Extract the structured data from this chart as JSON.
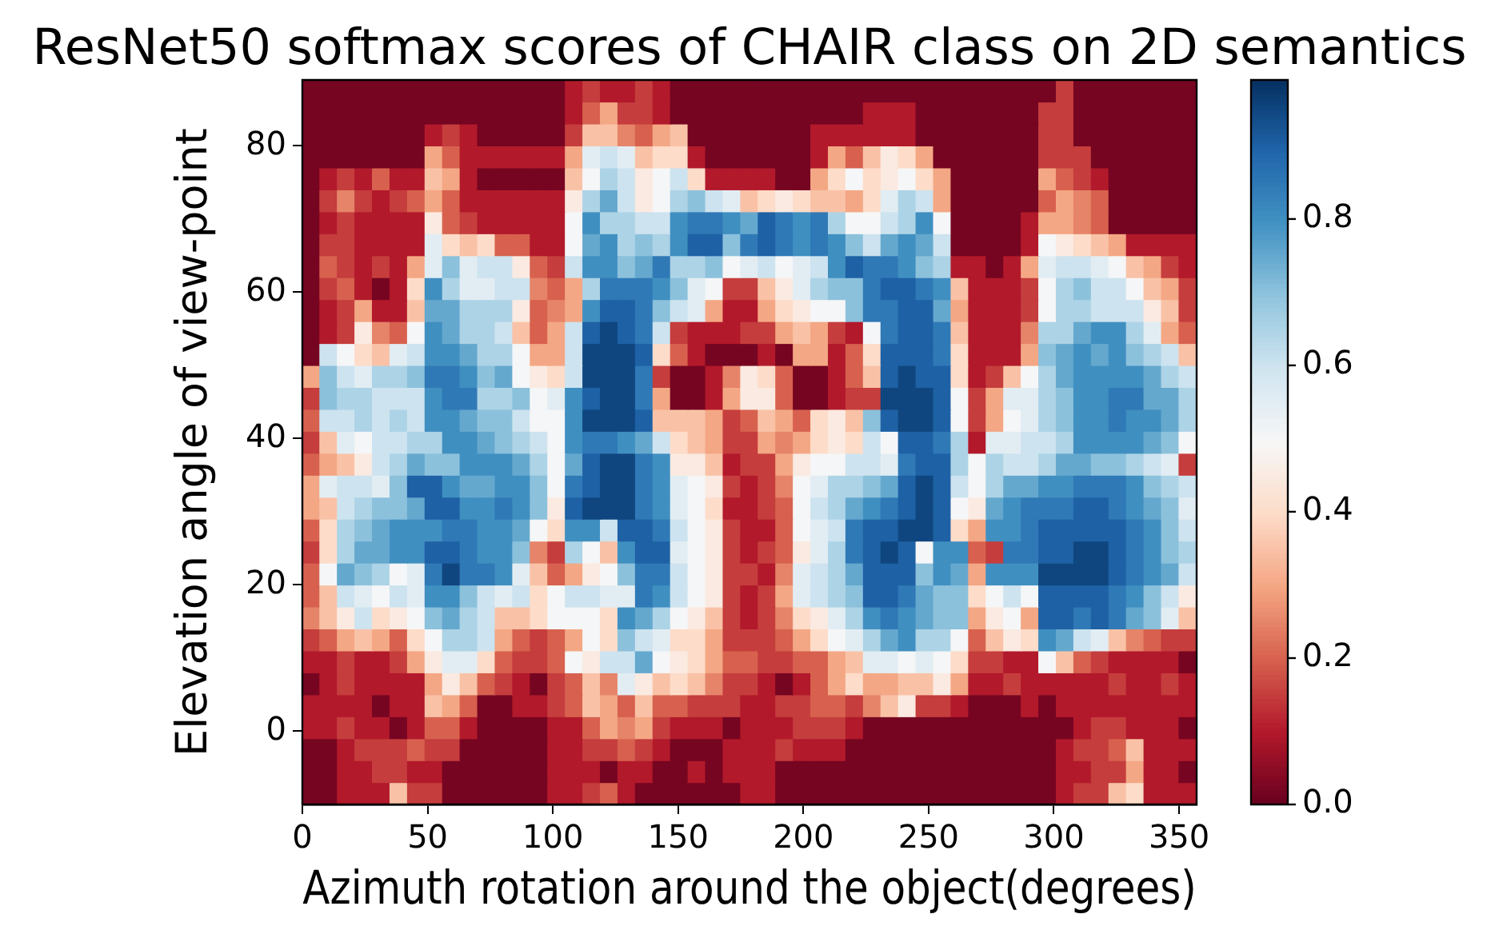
{
  "chart_data": {
    "type": "heatmap",
    "title": "ResNet50 softmax scores of CHAIR class on 2D semantics",
    "xlabel": "Azimuth rotation around the object(degrees)",
    "ylabel": "Elevation angle of view-point",
    "x": [
      3.5,
      10.5,
      17.5,
      24.5,
      31.5,
      38.5,
      45.5,
      52.5,
      59.5,
      66.5,
      73.5,
      80.5,
      87.5,
      94.5,
      101.5,
      108.5,
      115.5,
      122.5,
      129.5,
      136.5,
      143.5,
      150.5,
      157.5,
      164.5,
      171.5,
      178.5,
      185.5,
      192.5,
      199.5,
      206.5,
      213.5,
      220.5,
      227.5,
      234.5,
      241.5,
      248.5,
      255.5,
      262.5,
      269.5,
      276.5,
      283.5,
      290.5,
      297.5,
      304.5,
      311.5,
      318.5,
      325.5,
      332.5,
      339.5,
      346.5,
      353.5
    ],
    "xlim": [
      0,
      357
    ],
    "xticks": [
      0,
      50,
      100,
      150,
      200,
      250,
      300,
      350
    ],
    "ylim": [
      -10,
      89
    ],
    "yticks": [
      0,
      20,
      40,
      60,
      80
    ],
    "clim": [
      0,
      0.99
    ],
    "cticks": [
      {
        "value": 0,
        "label": "0.0"
      },
      0.2,
      0.4,
      0.6,
      0.8
    ],
    "cells": [
      [
        0.02,
        0.02,
        0.02,
        0.02,
        0.02,
        0.02,
        0.02,
        0.02,
        0.02,
        0.02,
        0.02,
        0.02,
        0.02,
        0.02,
        0.02,
        0.1,
        0.15,
        0.1,
        0.1,
        0.15,
        0.1,
        0.02,
        0.02,
        0.02,
        0.02,
        0.02,
        0.02,
        0.02,
        0.02,
        0.02,
        0.02,
        0.02,
        0.02,
        0.02,
        0.02,
        0.02,
        0.02,
        0.02,
        0.02,
        0.02,
        0.02,
        0.02,
        0.02,
        0.15,
        0.02,
        0.02,
        0.02,
        0.02,
        0.02,
        0.02,
        0.02
      ],
      [
        0.02,
        0.02,
        0.02,
        0.02,
        0.02,
        0.02,
        0.02,
        0.02,
        0.02,
        0.02,
        0.02,
        0.02,
        0.02,
        0.02,
        0.02,
        0.1,
        0.2,
        0.3,
        0.15,
        0.15,
        0.1,
        0.02,
        0.02,
        0.02,
        0.02,
        0.02,
        0.02,
        0.02,
        0.02,
        0.02,
        0.02,
        0.02,
        0.1,
        0.1,
        0.1,
        0.02,
        0.02,
        0.02,
        0.02,
        0.02,
        0.02,
        0.02,
        0.15,
        0.15,
        0.02,
        0.02,
        0.02,
        0.02,
        0.02,
        0.02,
        0.02
      ],
      [
        0.02,
        0.02,
        0.02,
        0.02,
        0.02,
        0.02,
        0.02,
        0.1,
        0.15,
        0.1,
        0.02,
        0.02,
        0.02,
        0.02,
        0.02,
        0.15,
        0.35,
        0.35,
        0.25,
        0.2,
        0.3,
        0.35,
        0.02,
        0.02,
        0.02,
        0.02,
        0.02,
        0.02,
        0.02,
        0.1,
        0.1,
        0.1,
        0.1,
        0.1,
        0.1,
        0.02,
        0.02,
        0.02,
        0.02,
        0.02,
        0.02,
        0.02,
        0.15,
        0.15,
        0.02,
        0.02,
        0.02,
        0.02,
        0.02,
        0.02,
        0.02
      ],
      [
        0.02,
        0.02,
        0.02,
        0.02,
        0.02,
        0.02,
        0.02,
        0.3,
        0.2,
        0.1,
        0.1,
        0.1,
        0.1,
        0.1,
        0.1,
        0.3,
        0.55,
        0.6,
        0.55,
        0.35,
        0.4,
        0.4,
        0.1,
        0.02,
        0.02,
        0.02,
        0.02,
        0.02,
        0.02,
        0.1,
        0.3,
        0.2,
        0.35,
        0.45,
        0.4,
        0.3,
        0.02,
        0.02,
        0.02,
        0.02,
        0.02,
        0.02,
        0.15,
        0.15,
        0.15,
        0.02,
        0.02,
        0.02,
        0.02,
        0.02,
        0.02
      ],
      [
        0.02,
        0.1,
        0.15,
        0.1,
        0.2,
        0.1,
        0.1,
        0.35,
        0.3,
        0.1,
        0.02,
        0.02,
        0.02,
        0.02,
        0.02,
        0.35,
        0.5,
        0.65,
        0.6,
        0.45,
        0.5,
        0.6,
        0.4,
        0.1,
        0.1,
        0.1,
        0.1,
        0.02,
        0.02,
        0.3,
        0.4,
        0.5,
        0.4,
        0.45,
        0.5,
        0.4,
        0.3,
        0.02,
        0.02,
        0.02,
        0.02,
        0.02,
        0.3,
        0.2,
        0.15,
        0.1,
        0.02,
        0.02,
        0.02,
        0.02,
        0.02
      ],
      [
        0.02,
        0.15,
        0.25,
        0.15,
        0.1,
        0.15,
        0.2,
        0.3,
        0.2,
        0.1,
        0.1,
        0.1,
        0.1,
        0.1,
        0.1,
        0.45,
        0.65,
        0.75,
        0.6,
        0.45,
        0.5,
        0.65,
        0.7,
        0.6,
        0.55,
        0.35,
        0.4,
        0.45,
        0.4,
        0.35,
        0.35,
        0.3,
        0.4,
        0.55,
        0.65,
        0.6,
        0.3,
        0.02,
        0.02,
        0.02,
        0.02,
        0.02,
        0.2,
        0.3,
        0.25,
        0.2,
        0.02,
        0.02,
        0.02,
        0.02,
        0.02
      ],
      [
        0.02,
        0.1,
        0.15,
        0.1,
        0.1,
        0.1,
        0.1,
        0.45,
        0.2,
        0.15,
        0.1,
        0.1,
        0.1,
        0.1,
        0.1,
        0.5,
        0.8,
        0.65,
        0.65,
        0.6,
        0.6,
        0.8,
        0.85,
        0.85,
        0.8,
        0.75,
        0.9,
        0.85,
        0.8,
        0.85,
        0.65,
        0.5,
        0.5,
        0.6,
        0.65,
        0.8,
        0.5,
        0.02,
        0.02,
        0.02,
        0.02,
        0.1,
        0.3,
        0.3,
        0.25,
        0.2,
        0.02,
        0.02,
        0.02,
        0.02,
        0.02
      ],
      [
        0.02,
        0.15,
        0.15,
        0.1,
        0.1,
        0.1,
        0.1,
        0.55,
        0.4,
        0.35,
        0.4,
        0.2,
        0.2,
        0.1,
        0.1,
        0.5,
        0.75,
        0.8,
        0.65,
        0.7,
        0.65,
        0.8,
        0.9,
        0.9,
        0.7,
        0.85,
        0.9,
        0.85,
        0.8,
        0.85,
        0.8,
        0.7,
        0.6,
        0.75,
        0.8,
        0.75,
        0.6,
        0.02,
        0.02,
        0.02,
        0.02,
        0.1,
        0.5,
        0.45,
        0.4,
        0.35,
        0.3,
        0.1,
        0.1,
        0.1,
        0.1
      ],
      [
        0.02,
        0.2,
        0.15,
        0.1,
        0.15,
        0.1,
        0.3,
        0.55,
        0.7,
        0.55,
        0.6,
        0.6,
        0.45,
        0.2,
        0.15,
        0.6,
        0.8,
        0.8,
        0.7,
        0.75,
        0.85,
        0.65,
        0.65,
        0.7,
        0.5,
        0.55,
        0.6,
        0.5,
        0.55,
        0.6,
        0.8,
        0.9,
        0.85,
        0.85,
        0.8,
        0.7,
        0.65,
        0.1,
        0.1,
        0.02,
        0.1,
        0.3,
        0.55,
        0.6,
        0.6,
        0.55,
        0.5,
        0.35,
        0.3,
        0.15,
        0.1
      ],
      [
        0.02,
        0.15,
        0.2,
        0.1,
        0.02,
        0.1,
        0.4,
        0.8,
        0.65,
        0.55,
        0.55,
        0.6,
        0.6,
        0.25,
        0.2,
        0.3,
        0.65,
        0.85,
        0.85,
        0.85,
        0.8,
        0.7,
        0.55,
        0.5,
        0.15,
        0.15,
        0.35,
        0.45,
        0.55,
        0.65,
        0.7,
        0.7,
        0.85,
        0.9,
        0.9,
        0.85,
        0.8,
        0.35,
        0.1,
        0.1,
        0.1,
        0.15,
        0.5,
        0.65,
        0.7,
        0.6,
        0.6,
        0.5,
        0.35,
        0.3,
        0.15
      ],
      [
        0.02,
        0.1,
        0.15,
        0.3,
        0.1,
        0.1,
        0.35,
        0.75,
        0.75,
        0.65,
        0.65,
        0.65,
        0.45,
        0.2,
        0.25,
        0.3,
        0.8,
        0.9,
        0.9,
        0.85,
        0.7,
        0.6,
        0.55,
        0.3,
        0.1,
        0.1,
        0.3,
        0.4,
        0.45,
        0.5,
        0.5,
        0.7,
        0.85,
        0.85,
        0.9,
        0.9,
        0.75,
        0.3,
        0.1,
        0.1,
        0.1,
        0.15,
        0.5,
        0.65,
        0.65,
        0.6,
        0.6,
        0.6,
        0.45,
        0.35,
        0.15
      ],
      [
        0.02,
        0.1,
        0.15,
        0.45,
        0.25,
        0.2,
        0.5,
        0.8,
        0.75,
        0.65,
        0.65,
        0.6,
        0.35,
        0.2,
        0.3,
        0.6,
        0.9,
        0.95,
        0.9,
        0.85,
        0.6,
        0.15,
        0.1,
        0.1,
        0.1,
        0.15,
        0.15,
        0.3,
        0.35,
        0.3,
        0.15,
        0.1,
        0.5,
        0.85,
        0.9,
        0.9,
        0.85,
        0.35,
        0.1,
        0.1,
        0.1,
        0.25,
        0.65,
        0.65,
        0.75,
        0.8,
        0.8,
        0.65,
        0.55,
        0.3,
        0.2
      ],
      [
        0.02,
        0.6,
        0.5,
        0.4,
        0.35,
        0.55,
        0.6,
        0.8,
        0.8,
        0.75,
        0.65,
        0.65,
        0.5,
        0.3,
        0.3,
        0.6,
        0.95,
        0.95,
        0.95,
        0.9,
        0.4,
        0.2,
        0.1,
        0.02,
        0.02,
        0.02,
        0.1,
        0.02,
        0.3,
        0.3,
        0.1,
        0.2,
        0.4,
        0.9,
        0.9,
        0.9,
        0.85,
        0.4,
        0.1,
        0.1,
        0.1,
        0.3,
        0.7,
        0.75,
        0.8,
        0.75,
        0.8,
        0.7,
        0.65,
        0.6,
        0.35
      ],
      [
        0.3,
        0.7,
        0.6,
        0.55,
        0.65,
        0.65,
        0.7,
        0.85,
        0.85,
        0.8,
        0.7,
        0.75,
        0.5,
        0.45,
        0.4,
        0.6,
        0.95,
        0.95,
        0.95,
        0.85,
        0.15,
        0.02,
        0.02,
        0.1,
        0.25,
        0.45,
        0.4,
        0.2,
        0.02,
        0.02,
        0.1,
        0.2,
        0.35,
        0.9,
        0.95,
        0.9,
        0.9,
        0.4,
        0.1,
        0.15,
        0.35,
        0.5,
        0.65,
        0.75,
        0.8,
        0.8,
        0.8,
        0.8,
        0.75,
        0.65,
        0.6
      ],
      [
        0.15,
        0.7,
        0.65,
        0.65,
        0.6,
        0.6,
        0.6,
        0.8,
        0.85,
        0.85,
        0.65,
        0.65,
        0.7,
        0.5,
        0.55,
        0.8,
        0.9,
        0.95,
        0.95,
        0.85,
        0.3,
        0.02,
        0.02,
        0.1,
        0.3,
        0.45,
        0.45,
        0.2,
        0.02,
        0.02,
        0.1,
        0.15,
        0.15,
        0.95,
        0.95,
        0.95,
        0.9,
        0.5,
        0.15,
        0.3,
        0.55,
        0.55,
        0.65,
        0.7,
        0.8,
        0.8,
        0.85,
        0.85,
        0.75,
        0.75,
        0.65
      ],
      [
        0.2,
        0.6,
        0.6,
        0.65,
        0.6,
        0.65,
        0.6,
        0.8,
        0.8,
        0.75,
        0.7,
        0.7,
        0.6,
        0.5,
        0.5,
        0.8,
        0.95,
        0.95,
        0.95,
        0.9,
        0.35,
        0.35,
        0.35,
        0.3,
        0.15,
        0.2,
        0.35,
        0.3,
        0.2,
        0.4,
        0.45,
        0.35,
        0.7,
        0.9,
        0.95,
        0.95,
        0.9,
        0.5,
        0.15,
        0.3,
        0.5,
        0.55,
        0.65,
        0.7,
        0.8,
        0.8,
        0.85,
        0.8,
        0.8,
        0.75,
        0.65
      ],
      [
        0.15,
        0.35,
        0.55,
        0.5,
        0.6,
        0.6,
        0.65,
        0.65,
        0.8,
        0.8,
        0.75,
        0.7,
        0.65,
        0.6,
        0.5,
        0.8,
        0.85,
        0.85,
        0.8,
        0.75,
        0.6,
        0.4,
        0.35,
        0.3,
        0.15,
        0.15,
        0.3,
        0.25,
        0.3,
        0.4,
        0.45,
        0.4,
        0.6,
        0.5,
        0.9,
        0.9,
        0.85,
        0.65,
        0.1,
        0.55,
        0.55,
        0.6,
        0.6,
        0.65,
        0.8,
        0.8,
        0.8,
        0.8,
        0.75,
        0.7,
        0.5
      ],
      [
        0.2,
        0.3,
        0.35,
        0.45,
        0.6,
        0.65,
        0.75,
        0.7,
        0.7,
        0.8,
        0.8,
        0.8,
        0.75,
        0.65,
        0.5,
        0.75,
        0.9,
        0.95,
        0.95,
        0.85,
        0.8,
        0.45,
        0.45,
        0.35,
        0.1,
        0.15,
        0.15,
        0.3,
        0.45,
        0.5,
        0.5,
        0.6,
        0.6,
        0.55,
        0.85,
        0.9,
        0.9,
        0.65,
        0.5,
        0.65,
        0.6,
        0.6,
        0.65,
        0.75,
        0.75,
        0.7,
        0.7,
        0.65,
        0.6,
        0.55,
        0.15
      ],
      [
        0.3,
        0.55,
        0.6,
        0.6,
        0.55,
        0.7,
        0.9,
        0.9,
        0.8,
        0.75,
        0.75,
        0.8,
        0.8,
        0.7,
        0.5,
        0.85,
        0.9,
        0.95,
        0.95,
        0.85,
        0.8,
        0.55,
        0.5,
        0.45,
        0.15,
        0.1,
        0.15,
        0.25,
        0.5,
        0.55,
        0.65,
        0.65,
        0.7,
        0.75,
        0.9,
        0.95,
        0.9,
        0.6,
        0.5,
        0.65,
        0.75,
        0.75,
        0.8,
        0.8,
        0.85,
        0.85,
        0.85,
        0.8,
        0.7,
        0.65,
        0.6
      ],
      [
        0.3,
        0.35,
        0.6,
        0.65,
        0.7,
        0.7,
        0.75,
        0.9,
        0.9,
        0.8,
        0.8,
        0.85,
        0.8,
        0.7,
        0.45,
        0.9,
        0.95,
        0.95,
        0.95,
        0.85,
        0.8,
        0.55,
        0.5,
        0.4,
        0.1,
        0.1,
        0.15,
        0.2,
        0.5,
        0.6,
        0.65,
        0.75,
        0.8,
        0.85,
        0.9,
        0.95,
        0.9,
        0.5,
        0.45,
        0.75,
        0.8,
        0.85,
        0.85,
        0.85,
        0.9,
        0.9,
        0.85,
        0.8,
        0.75,
        0.7,
        0.55
      ],
      [
        0.2,
        0.4,
        0.65,
        0.7,
        0.75,
        0.8,
        0.8,
        0.8,
        0.85,
        0.85,
        0.8,
        0.8,
        0.75,
        0.5,
        0.4,
        0.8,
        0.8,
        0.6,
        0.9,
        0.9,
        0.85,
        0.6,
        0.5,
        0.45,
        0.15,
        0.1,
        0.1,
        0.2,
        0.5,
        0.55,
        0.6,
        0.85,
        0.9,
        0.9,
        0.95,
        0.95,
        0.9,
        0.4,
        0.3,
        0.8,
        0.8,
        0.85,
        0.9,
        0.9,
        0.9,
        0.9,
        0.9,
        0.85,
        0.8,
        0.7,
        0.6
      ],
      [
        0.15,
        0.4,
        0.65,
        0.75,
        0.75,
        0.8,
        0.8,
        0.9,
        0.9,
        0.85,
        0.8,
        0.8,
        0.7,
        0.25,
        0.15,
        0.65,
        0.5,
        0.35,
        0.8,
        0.9,
        0.9,
        0.55,
        0.5,
        0.45,
        0.15,
        0.1,
        0.15,
        0.2,
        0.45,
        0.55,
        0.65,
        0.85,
        0.9,
        0.95,
        0.9,
        0.5,
        0.8,
        0.8,
        0.2,
        0.15,
        0.85,
        0.85,
        0.9,
        0.9,
        0.95,
        0.95,
        0.9,
        0.85,
        0.8,
        0.7,
        0.65
      ],
      [
        0.2,
        0.5,
        0.75,
        0.7,
        0.65,
        0.5,
        0.55,
        0.85,
        0.95,
        0.85,
        0.85,
        0.8,
        0.55,
        0.35,
        0.2,
        0.3,
        0.45,
        0.5,
        0.7,
        0.85,
        0.85,
        0.6,
        0.5,
        0.45,
        0.15,
        0.15,
        0.1,
        0.25,
        0.55,
        0.6,
        0.65,
        0.75,
        0.9,
        0.9,
        0.9,
        0.7,
        0.8,
        0.75,
        0.3,
        0.8,
        0.8,
        0.8,
        0.95,
        0.95,
        0.95,
        0.95,
        0.9,
        0.85,
        0.8,
        0.75,
        0.6
      ],
      [
        0.2,
        0.35,
        0.6,
        0.55,
        0.5,
        0.6,
        0.55,
        0.8,
        0.8,
        0.7,
        0.6,
        0.55,
        0.6,
        0.4,
        0.5,
        0.6,
        0.6,
        0.55,
        0.55,
        0.85,
        0.8,
        0.6,
        0.5,
        0.45,
        0.15,
        0.1,
        0.15,
        0.3,
        0.55,
        0.6,
        0.65,
        0.7,
        0.9,
        0.9,
        0.85,
        0.75,
        0.7,
        0.7,
        0.4,
        0.5,
        0.6,
        0.5,
        0.9,
        0.9,
        0.9,
        0.9,
        0.85,
        0.8,
        0.7,
        0.6,
        0.45
      ],
      [
        0.25,
        0.35,
        0.45,
        0.6,
        0.4,
        0.45,
        0.5,
        0.7,
        0.75,
        0.65,
        0.6,
        0.35,
        0.35,
        0.4,
        0.5,
        0.5,
        0.5,
        0.4,
        0.8,
        0.75,
        0.65,
        0.5,
        0.45,
        0.35,
        0.15,
        0.1,
        0.15,
        0.25,
        0.4,
        0.45,
        0.55,
        0.65,
        0.8,
        0.85,
        0.8,
        0.75,
        0.7,
        0.7,
        0.3,
        0.45,
        0.5,
        0.3,
        0.9,
        0.9,
        0.85,
        0.9,
        0.85,
        0.75,
        0.7,
        0.55,
        0.35
      ],
      [
        0.15,
        0.2,
        0.3,
        0.35,
        0.3,
        0.2,
        0.4,
        0.5,
        0.65,
        0.65,
        0.6,
        0.3,
        0.2,
        0.15,
        0.2,
        0.3,
        0.5,
        0.4,
        0.7,
        0.6,
        0.55,
        0.4,
        0.4,
        0.3,
        0.15,
        0.15,
        0.15,
        0.2,
        0.3,
        0.4,
        0.5,
        0.55,
        0.65,
        0.75,
        0.8,
        0.65,
        0.65,
        0.5,
        0.2,
        0.35,
        0.45,
        0.4,
        0.8,
        0.75,
        0.6,
        0.55,
        0.35,
        0.25,
        0.2,
        0.15,
        0.15
      ],
      [
        0.1,
        0.1,
        0.15,
        0.1,
        0.1,
        0.15,
        0.3,
        0.45,
        0.55,
        0.55,
        0.4,
        0.2,
        0.15,
        0.15,
        0.2,
        0.5,
        0.45,
        0.6,
        0.6,
        0.75,
        0.5,
        0.45,
        0.4,
        0.3,
        0.2,
        0.2,
        0.15,
        0.15,
        0.2,
        0.2,
        0.3,
        0.35,
        0.55,
        0.55,
        0.5,
        0.55,
        0.5,
        0.4,
        0.15,
        0.15,
        0.1,
        0.1,
        0.5,
        0.35,
        0.2,
        0.15,
        0.1,
        0.1,
        0.1,
        0.1,
        0.02
      ],
      [
        0.02,
        0.1,
        0.15,
        0.1,
        0.1,
        0.1,
        0.1,
        0.3,
        0.45,
        0.35,
        0.2,
        0.15,
        0.1,
        0.02,
        0.15,
        0.2,
        0.35,
        0.25,
        0.55,
        0.45,
        0.35,
        0.4,
        0.35,
        0.25,
        0.15,
        0.15,
        0.1,
        0.02,
        0.1,
        0.2,
        0.3,
        0.4,
        0.3,
        0.3,
        0.35,
        0.35,
        0.45,
        0.3,
        0.1,
        0.1,
        0.15,
        0.1,
        0.1,
        0.1,
        0.1,
        0.1,
        0.15,
        0.1,
        0.1,
        0.15,
        0.1
      ],
      [
        0.1,
        0.1,
        0.1,
        0.1,
        0.02,
        0.1,
        0.1,
        0.35,
        0.3,
        0.2,
        0.02,
        0.02,
        0.1,
        0.1,
        0.15,
        0.2,
        0.35,
        0.3,
        0.2,
        0.35,
        0.2,
        0.2,
        0.15,
        0.15,
        0.15,
        0.1,
        0.1,
        0.15,
        0.15,
        0.2,
        0.2,
        0.15,
        0.25,
        0.35,
        0.45,
        0.15,
        0.15,
        0.1,
        0.02,
        0.02,
        0.02,
        0.1,
        0.02,
        0.1,
        0.1,
        0.1,
        0.1,
        0.1,
        0.1,
        0.1,
        0.1
      ],
      [
        0.1,
        0.1,
        0.15,
        0.1,
        0.1,
        0.02,
        0.1,
        0.2,
        0.2,
        0.1,
        0.02,
        0.02,
        0.02,
        0.02,
        0.1,
        0.1,
        0.2,
        0.3,
        0.25,
        0.3,
        0.15,
        0.1,
        0.1,
        0.1,
        0.02,
        0.1,
        0.1,
        0.1,
        0.15,
        0.15,
        0.15,
        0.1,
        0.02,
        0.02,
        0.02,
        0.02,
        0.02,
        0.02,
        0.02,
        0.02,
        0.02,
        0.02,
        0.02,
        0.02,
        0.1,
        0.15,
        0.15,
        0.1,
        0.1,
        0.1,
        0.02
      ],
      [
        0.02,
        0.02,
        0.1,
        0.15,
        0.15,
        0.15,
        0.2,
        0.15,
        0.15,
        0.02,
        0.02,
        0.02,
        0.02,
        0.02,
        0.1,
        0.1,
        0.15,
        0.15,
        0.2,
        0.15,
        0.1,
        0.02,
        0.02,
        0.02,
        0.1,
        0.1,
        0.1,
        0.15,
        0.1,
        0.1,
        0.1,
        0.02,
        0.02,
        0.02,
        0.02,
        0.02,
        0.02,
        0.02,
        0.02,
        0.02,
        0.02,
        0.02,
        0.02,
        0.1,
        0.15,
        0.15,
        0.2,
        0.35,
        0.1,
        0.1,
        0.1
      ],
      [
        0.02,
        0.02,
        0.1,
        0.1,
        0.15,
        0.15,
        0.1,
        0.1,
        0.02,
        0.02,
        0.02,
        0.02,
        0.02,
        0.02,
        0.1,
        0.1,
        0.1,
        0.02,
        0.1,
        0.1,
        0.02,
        0.02,
        0.1,
        0.02,
        0.1,
        0.1,
        0.1,
        0.02,
        0.02,
        0.02,
        0.02,
        0.02,
        0.02,
        0.02,
        0.02,
        0.02,
        0.02,
        0.02,
        0.02,
        0.02,
        0.02,
        0.02,
        0.02,
        0.1,
        0.1,
        0.15,
        0.15,
        0.3,
        0.1,
        0.1,
        0.02
      ],
      [
        0.02,
        0.02,
        0.1,
        0.1,
        0.1,
        0.35,
        0.15,
        0.15,
        0.02,
        0.02,
        0.02,
        0.02,
        0.02,
        0.02,
        0.1,
        0.1,
        0.15,
        0.2,
        0.1,
        0.02,
        0.02,
        0.02,
        0.02,
        0.02,
        0.02,
        0.1,
        0.1,
        0.02,
        0.02,
        0.02,
        0.02,
        0.02,
        0.02,
        0.02,
        0.02,
        0.02,
        0.02,
        0.02,
        0.02,
        0.02,
        0.02,
        0.02,
        0.02,
        0.1,
        0.15,
        0.15,
        0.35,
        0.4,
        0.1,
        0.1,
        0.1
      ]
    ]
  }
}
